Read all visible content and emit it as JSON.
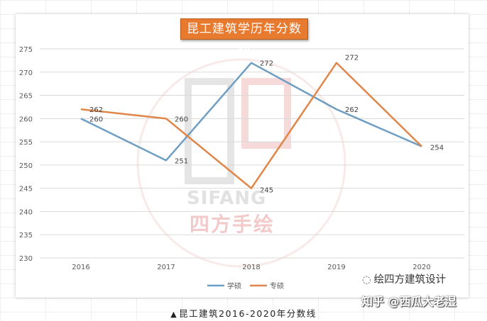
{
  "chart_data": {
    "type": "line",
    "title": "昆工建筑学历年分数线",
    "categories": [
      "2016",
      "2017",
      "2018",
      "2019",
      "2020"
    ],
    "series": [
      {
        "name": "学硕",
        "values": [
          260,
          251,
          272,
          262,
          254
        ],
        "color": "#6f9ec3"
      },
      {
        "name": "专硕",
        "values": [
          262,
          260,
          245,
          272,
          254
        ],
        "color": "#e0864a"
      }
    ],
    "ylim": [
      230,
      275
    ],
    "yticks": [
      230,
      235,
      240,
      245,
      250,
      255,
      260,
      265,
      270,
      275
    ],
    "grid": true,
    "legend": "bottom"
  },
  "caption": {
    "symbol": "▲",
    "text": "昆工建筑2016-2020年分数线"
  },
  "watermark": {
    "text": "SIFANG",
    "cn": "四方手绘"
  },
  "wechat_label": "绘四方建筑设计",
  "zhihu_label": "知乎 @西瓜大老湿"
}
